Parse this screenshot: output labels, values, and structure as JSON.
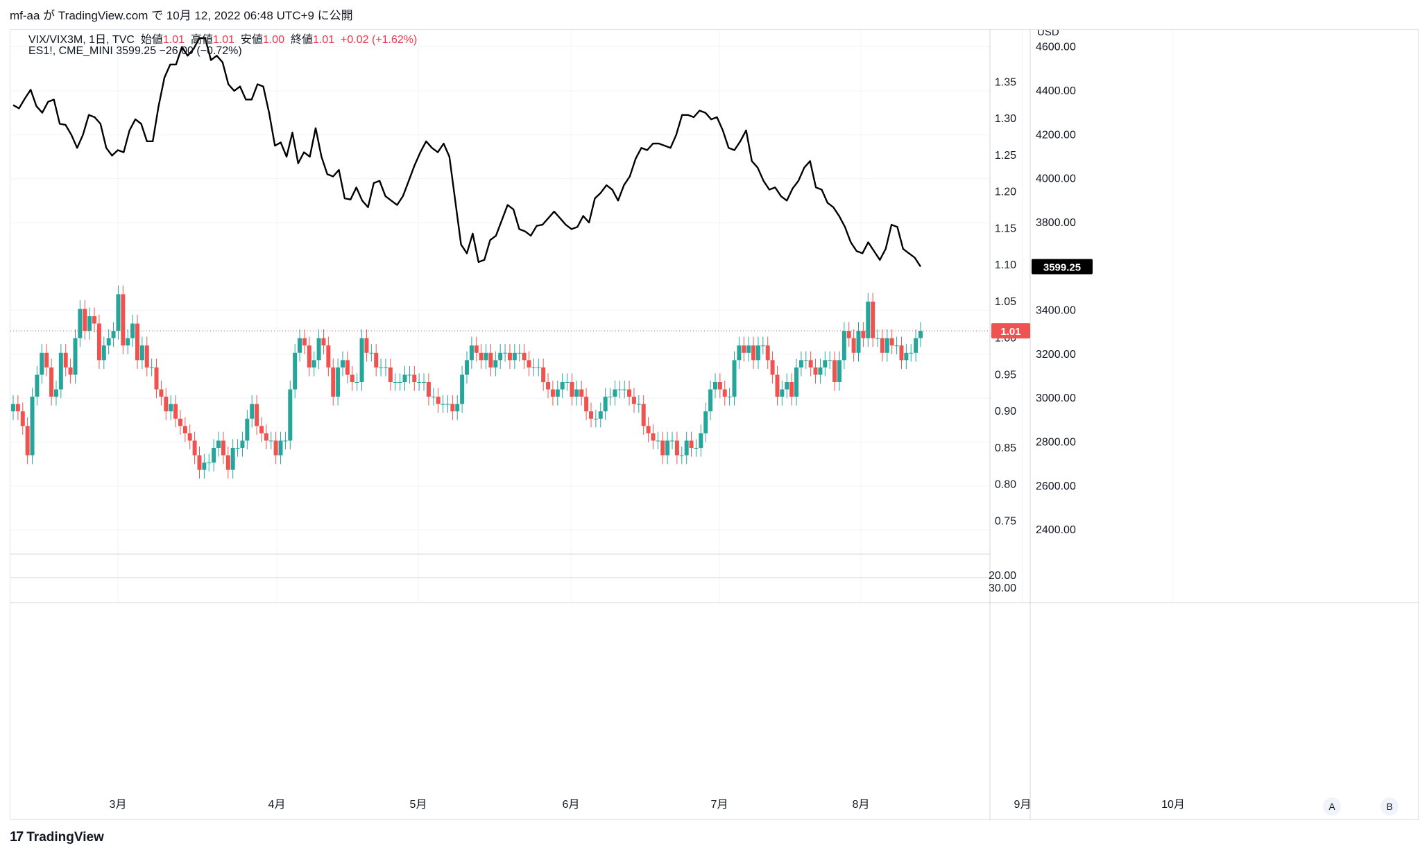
{
  "header": {
    "text": "mf-aa が TradingView.com で 10月 12, 2022 06:48 UTC+9 に公開"
  },
  "legend": {
    "line1_symbol": "VIX/VIX3M, 1日, TVC",
    "open_label": "始値",
    "open": "1.01",
    "high_label": "高値",
    "high": "1.01",
    "low_label": "安値",
    "low": "1.00",
    "close_label": "終値",
    "close": "1.01",
    "change": "+0.02 (+1.62%)",
    "line2": "ES1!, CME_MINI  3599.25  −26.00 (−0.72%)"
  },
  "axis": {
    "currency": "USD",
    "right_usd_ticks": [
      "4600.00",
      "4400.00",
      "4200.00",
      "4000.00",
      "3800.00",
      "3400.00",
      "3200.00",
      "3000.00",
      "2800.00",
      "2600.00",
      "2400.00"
    ],
    "inner_ratio_ticks": [
      "1.35",
      "1.30",
      "1.25",
      "1.20",
      "1.15",
      "1.10",
      "1.05",
      "1.00",
      "0.95",
      "0.90",
      "0.85",
      "0.80",
      "0.75"
    ],
    "lower_pane_ticks": [
      "20.00",
      "30.00"
    ],
    "price_tag_es": "3599.25",
    "price_tag_ratio": "1.01",
    "btn_a": "A",
    "btn_b": "B"
  },
  "footer": {
    "brand": "TradingView"
  },
  "chart_data": {
    "type": "line",
    "x_labels": [
      "3月",
      "4月",
      "5月",
      "6月",
      "7月",
      "8月",
      "9月",
      "10月"
    ],
    "series": [
      {
        "name": "ES1!",
        "color": "#000000",
        "values": [
          4335,
          4320,
          4365,
          4405,
          4330,
          4300,
          4350,
          4360,
          4250,
          4245,
          4200,
          4140,
          4200,
          4290,
          4280,
          4250,
          4140,
          4105,
          4130,
          4120,
          4220,
          4270,
          4250,
          4170,
          4170,
          4330,
          4460,
          4520,
          4520,
          4600,
          4560,
          4590,
          4640,
          4640,
          4540,
          4560,
          4530,
          4430,
          4400,
          4420,
          4360,
          4360,
          4430,
          4420,
          4300,
          4150,
          4165,
          4100,
          4210,
          4070,
          4120,
          4100,
          4230,
          4100,
          4020,
          4010,
          4040,
          3910,
          3905,
          3960,
          3900,
          3870,
          3980,
          3990,
          3920,
          3900,
          3880,
          3920,
          3990,
          4060,
          4120,
          4170,
          4140,
          4120,
          4160,
          4100,
          3900,
          3700,
          3660,
          3750,
          3620,
          3630,
          3720,
          3740,
          3810,
          3880,
          3860,
          3770,
          3760,
          3740,
          3785,
          3790,
          3820,
          3850,
          3820,
          3790,
          3770,
          3780,
          3830,
          3800,
          3910,
          3935,
          3970,
          3950,
          3900,
          3970,
          4010,
          4090,
          4140,
          4130,
          4160,
          4160,
          4150,
          4140,
          4200,
          4290,
          4290,
          4280,
          4310,
          4300,
          4270,
          4280,
          4220,
          4140,
          4130,
          4170,
          4220,
          4080,
          4050,
          3990,
          3950,
          3960,
          3920,
          3900,
          3955,
          3990,
          4050,
          4080,
          3960,
          3950,
          3890,
          3870,
          3830,
          3780,
          3710,
          3670,
          3660,
          3710,
          3670,
          3630,
          3680,
          3790,
          3780,
          3680,
          3660,
          3640,
          3599.25
        ],
        "y_range_usd": [
          2290,
          4640
        ]
      },
      {
        "name": "VIX/VIX3M",
        "type": "candlestick",
        "up_color": "#26a69a",
        "down_color": "#ef5350",
        "closes": [
          0.91,
          0.9,
          0.88,
          0.84,
          0.92,
          0.95,
          0.98,
          0.96,
          0.92,
          0.93,
          0.98,
          0.96,
          0.95,
          1.0,
          1.04,
          1.01,
          1.03,
          1.02,
          0.97,
          0.99,
          1.0,
          1.01,
          1.06,
          0.99,
          1.0,
          1.02,
          0.97,
          0.99,
          0.96,
          0.96,
          0.93,
          0.92,
          0.9,
          0.91,
          0.89,
          0.88,
          0.87,
          0.86,
          0.84,
          0.82,
          0.83,
          0.83,
          0.85,
          0.86,
          0.84,
          0.82,
          0.85,
          0.85,
          0.86,
          0.89,
          0.91,
          0.88,
          0.87,
          0.86,
          0.86,
          0.84,
          0.86,
          0.86,
          0.93,
          0.98,
          1.0,
          0.99,
          0.96,
          0.97,
          1.0,
          0.99,
          0.96,
          0.92,
          0.96,
          0.97,
          0.95,
          0.94,
          0.94,
          1.0,
          0.98,
          0.98,
          0.96,
          0.96,
          0.96,
          0.94,
          0.94,
          0.94,
          0.95,
          0.95,
          0.94,
          0.94,
          0.94,
          0.92,
          0.92,
          0.91,
          0.91,
          0.91,
          0.9,
          0.91,
          0.95,
          0.97,
          0.99,
          0.98,
          0.97,
          0.98,
          0.96,
          0.97,
          0.98,
          0.98,
          0.97,
          0.98,
          0.98,
          0.97,
          0.96,
          0.96,
          0.96,
          0.94,
          0.93,
          0.92,
          0.93,
          0.94,
          0.94,
          0.92,
          0.93,
          0.92,
          0.9,
          0.89,
          0.89,
          0.9,
          0.92,
          0.92,
          0.93,
          0.93,
          0.93,
          0.92,
          0.91,
          0.91,
          0.88,
          0.87,
          0.86,
          0.86,
          0.84,
          0.86,
          0.86,
          0.84,
          0.84,
          0.86,
          0.85,
          0.85,
          0.87,
          0.9,
          0.93,
          0.94,
          0.93,
          0.92,
          0.92,
          0.97,
          0.99,
          0.98,
          0.99,
          0.97,
          0.99,
          0.99,
          0.97,
          0.95,
          0.92,
          0.93,
          0.94,
          0.92,
          0.96,
          0.97,
          0.97,
          0.96,
          0.95,
          0.96,
          0.97,
          0.97,
          0.94,
          0.97,
          1.01,
          1.0,
          0.98,
          1.01,
          1.0,
          1.05,
          1.0,
          1.0,
          0.98,
          1.0,
          0.99,
          0.99,
          0.97,
          0.98,
          0.98,
          1.0,
          1.01
        ],
        "y_range_ratio": [
          0.705,
          1.41
        ]
      }
    ],
    "ylabel": "USD",
    "grid": true
  }
}
